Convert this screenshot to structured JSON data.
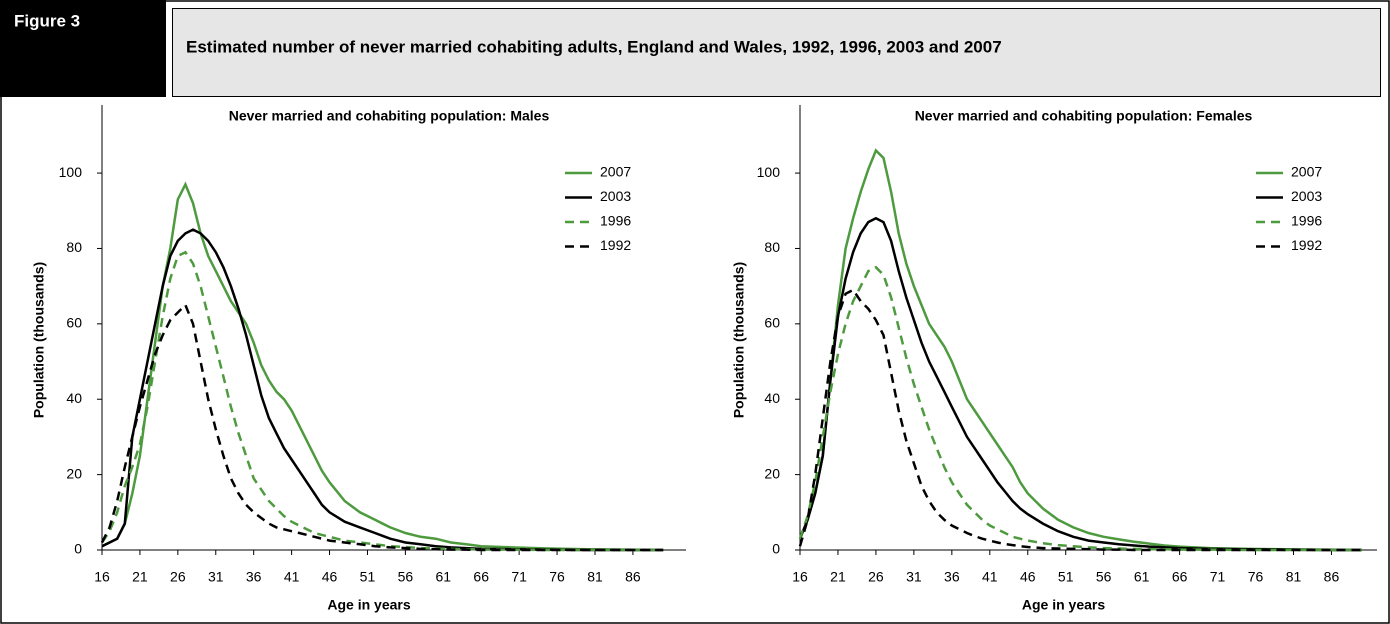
{
  "header": {
    "figure_label": "Figure 3",
    "title": "Estimated number of never married cohabiting adults, England and Wales, 1992, 1996, 2003 and 2007"
  },
  "chart_data": [
    {
      "type": "line",
      "title": "Never married and cohabiting population: Males",
      "x_label": "Age in years",
      "y_label": "Population (thousands)",
      "x": [
        16,
        17,
        18,
        19,
        20,
        21,
        22,
        23,
        24,
        25,
        26,
        27,
        28,
        29,
        30,
        31,
        32,
        33,
        34,
        35,
        36,
        37,
        38,
        39,
        40,
        41,
        42,
        43,
        44,
        45,
        46,
        48,
        50,
        52,
        54,
        56,
        58,
        60,
        62,
        64,
        66,
        70,
        75,
        80,
        85,
        90
      ],
      "xlim": [
        16,
        93
      ],
      "xticks": [
        16,
        21,
        26,
        31,
        36,
        41,
        46,
        51,
        56,
        61,
        66,
        71,
        76,
        81,
        86
      ],
      "ylim": [
        0,
        117
      ],
      "yticks": [
        0,
        20,
        40,
        60,
        80,
        100
      ],
      "legend": "upper right",
      "series": [
        {
          "name": "2007",
          "color": "#4e9a3f",
          "dash": "solid",
          "values": [
            1,
            2,
            3,
            7,
            15,
            25,
            40,
            55,
            70,
            80,
            93,
            97,
            92,
            84,
            78,
            74,
            70,
            66,
            63,
            60,
            55,
            49,
            45,
            42,
            40,
            37,
            33,
            29,
            25,
            21,
            18,
            13,
            10,
            8,
            6,
            4.5,
            3.5,
            3,
            2,
            1.5,
            1,
            0.7,
            0.4,
            0.2,
            0.1,
            0
          ]
        },
        {
          "name": "2003",
          "color": "#000000",
          "dash": "solid",
          "values": [
            1,
            2,
            3,
            7,
            30,
            40,
            50,
            60,
            70,
            78,
            82,
            84,
            85,
            84,
            82,
            79,
            75,
            70,
            64,
            57,
            49,
            41,
            35,
            31,
            27,
            24,
            21,
            18,
            15,
            12,
            10,
            7.5,
            6,
            4.5,
            3,
            2,
            1.5,
            1,
            0.7,
            0.5,
            0.3,
            0.2,
            0.1,
            0,
            0,
            0
          ]
        },
        {
          "name": "1996",
          "color": "#4e9a3f",
          "dash": "dashed",
          "values": [
            2,
            5,
            10,
            17,
            22,
            28,
            38,
            50,
            62,
            72,
            78,
            79,
            76,
            70,
            62,
            54,
            46,
            38,
            31,
            25,
            19,
            16,
            13,
            11,
            9,
            7.5,
            6.5,
            5.5,
            4.5,
            4,
            3.5,
            2.5,
            2,
            1.5,
            1,
            0.8,
            0.5,
            0.4,
            0.3,
            0.2,
            0.1,
            0.1,
            0,
            0,
            0,
            0
          ]
        },
        {
          "name": "1992",
          "color": "#000000",
          "dash": "dashed",
          "values": [
            2,
            6,
            13,
            22,
            30,
            38,
            45,
            52,
            57,
            61,
            63,
            65,
            60,
            50,
            40,
            32,
            25,
            19,
            15,
            12,
            10,
            8.5,
            7,
            6,
            5.5,
            5,
            4.5,
            4,
            3.5,
            3,
            2.5,
            2,
            1.5,
            1,
            0.7,
            0.5,
            0.3,
            0.2,
            0.1,
            0.1,
            0,
            0,
            0,
            0,
            0,
            0
          ]
        }
      ]
    },
    {
      "type": "line",
      "title": "Never married and cohabiting population: Females",
      "x_label": "Age in years",
      "y_label": "Population (thousands)",
      "x": [
        16,
        17,
        18,
        19,
        20,
        21,
        22,
        23,
        24,
        25,
        26,
        27,
        28,
        29,
        30,
        31,
        32,
        33,
        34,
        35,
        36,
        37,
        38,
        39,
        40,
        41,
        42,
        43,
        44,
        45,
        46,
        48,
        50,
        52,
        54,
        56,
        58,
        60,
        62,
        64,
        66,
        70,
        75,
        80,
        85,
        90
      ],
      "xlim": [
        16,
        92
      ],
      "xticks": [
        16,
        21,
        26,
        31,
        36,
        41,
        46,
        51,
        56,
        61,
        66,
        71,
        76,
        81,
        86
      ],
      "ylim": [
        0,
        117
      ],
      "yticks": [
        0,
        20,
        40,
        60,
        80,
        100
      ],
      "legend": "upper right",
      "series": [
        {
          "name": "2007",
          "color": "#4e9a3f",
          "dash": "solid",
          "values": [
            3,
            8,
            15,
            25,
            45,
            65,
            80,
            88,
            95,
            101,
            106,
            104,
            95,
            84,
            76,
            70,
            65,
            60,
            57,
            54,
            50,
            45,
            40,
            37,
            34,
            31,
            28,
            25,
            22,
            18,
            15,
            11,
            8,
            6,
            4.5,
            3.5,
            2.8,
            2.2,
            1.7,
            1.2,
            0.9,
            0.5,
            0.3,
            0.2,
            0.1,
            0
          ]
        },
        {
          "name": "2003",
          "color": "#000000",
          "dash": "solid",
          "values": [
            3,
            8,
            15,
            25,
            45,
            62,
            72,
            79,
            84,
            87,
            88,
            87,
            82,
            74,
            67,
            61,
            55,
            50,
            46,
            42,
            38,
            34,
            30,
            27,
            24,
            21,
            18,
            15.5,
            13,
            11,
            9.5,
            7,
            5,
            3.5,
            2.5,
            2,
            1.5,
            1.2,
            0.9,
            0.7,
            0.5,
            0.3,
            0.2,
            0.1,
            0,
            0
          ]
        },
        {
          "name": "1996",
          "color": "#4e9a3f",
          "dash": "dashed",
          "values": [
            3,
            9,
            18,
            30,
            42,
            52,
            60,
            66,
            70,
            74,
            75,
            73,
            67,
            59,
            51,
            44,
            38,
            32,
            27,
            22,
            18,
            15,
            12,
            10,
            8,
            6.5,
            5.5,
            4.5,
            3.5,
            3,
            2.5,
            1.8,
            1.3,
            1,
            0.7,
            0.5,
            0.4,
            0.3,
            0.2,
            0.2,
            0.1,
            0.1,
            0,
            0,
            0,
            0
          ]
        },
        {
          "name": "1992",
          "color": "#000000",
          "dash": "dashed",
          "values": [
            1,
            8,
            20,
            35,
            50,
            62,
            68,
            69,
            66,
            64,
            61,
            57,
            47,
            37,
            29,
            23,
            17,
            13,
            10,
            8,
            6.5,
            5.5,
            4.5,
            3.7,
            3,
            2.5,
            2,
            1.6,
            1.3,
            1,
            0.8,
            0.5,
            0.4,
            0.3,
            0.2,
            0.1,
            0.1,
            0,
            0,
            0,
            0,
            0,
            0,
            0,
            0,
            0
          ]
        }
      ]
    }
  ]
}
